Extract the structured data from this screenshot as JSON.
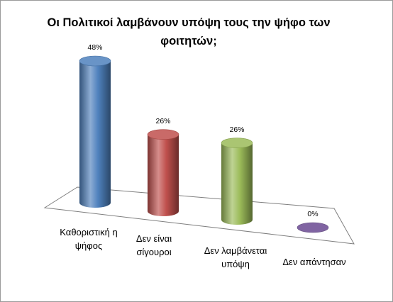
{
  "chart_data": {
    "type": "bar",
    "title": "Οι Πολιτικοί λαμβάνουν υπόψη τους την ψήφο των φοιτητών;",
    "categories": [
      "Καθοριστική η ψήφος",
      "Δεν είναι σίγουροι",
      "Δεν λαμβάνεται υπόψη",
      "Δεν απάντησαν"
    ],
    "values": [
      48,
      26,
      26,
      0
    ],
    "value_labels": [
      "48%",
      "26%",
      "26%",
      "0%"
    ],
    "colors": [
      "#4f81bd",
      "#c0504d",
      "#9bbb59",
      "#8064a2"
    ],
    "xlabel": "",
    "ylabel": "",
    "ylim": [
      0,
      50
    ],
    "grid": false,
    "legend": "none",
    "style": "3d-cylinder"
  }
}
